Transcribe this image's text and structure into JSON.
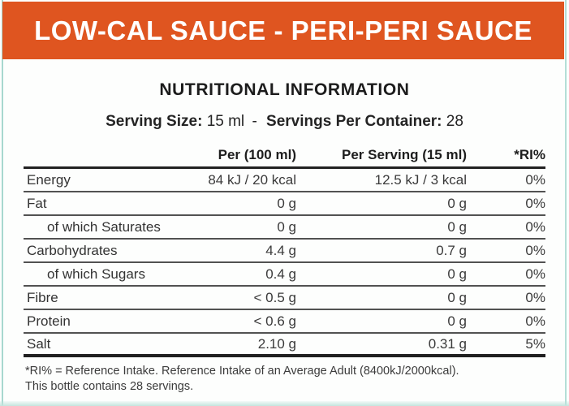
{
  "banner": {
    "title": "LOW-CAL SAUCE - PERI-PERI SAUCE"
  },
  "header": {
    "title": "NUTRITIONAL INFORMATION",
    "serving_size_label": "Serving Size:",
    "serving_size_value": "15 ml",
    "separator": "-",
    "servings_per_container_label": "Servings Per Container:",
    "servings_per_container_value": "28"
  },
  "table": {
    "columns": {
      "nutrient": "",
      "per_100": "Per (100 ml)",
      "per_serving": "Per Serving (15 ml)",
      "ri": "*RI%"
    },
    "rows": [
      {
        "label": "Energy",
        "per100": "84 kJ / 20 kcal",
        "perServing": "12.5 kJ / 3 kcal",
        "ri": "0%"
      },
      {
        "label": "Fat",
        "per100": "0 g",
        "perServing": "0 g",
        "ri": "0%"
      },
      {
        "label": "of which Saturates",
        "per100": "0 g",
        "perServing": "0 g",
        "ri": "0%"
      },
      {
        "label": "Carbohydrates",
        "per100": "4.4 g",
        "perServing": "0.7 g",
        "ri": "0%"
      },
      {
        "label": "of which Sugars",
        "per100": "0.4 g",
        "perServing": "0 g",
        "ri": "0%"
      },
      {
        "label": "Fibre",
        "per100": "< 0.5 g",
        "perServing": "0 g",
        "ri": "0%"
      },
      {
        "label": "Protein",
        "per100": "< 0.6 g",
        "perServing": "0 g",
        "ri": "0%"
      },
      {
        "label": "Salt",
        "per100": "2.10 g",
        "perServing": "0.31 g",
        "ri": "5%"
      }
    ]
  },
  "footnotes": {
    "line1": "*RI% = Reference Intake. Reference Intake of an Average Adult (8400kJ/2000kcal).",
    "line2": "This bottle contains 28 servings."
  },
  "colors": {
    "banner_orange": "#df5520",
    "edge_teal": "#a7d8cf",
    "rule_black": "#222222",
    "rule_gray": "#525252",
    "text_dark": "#1e1e1e"
  }
}
